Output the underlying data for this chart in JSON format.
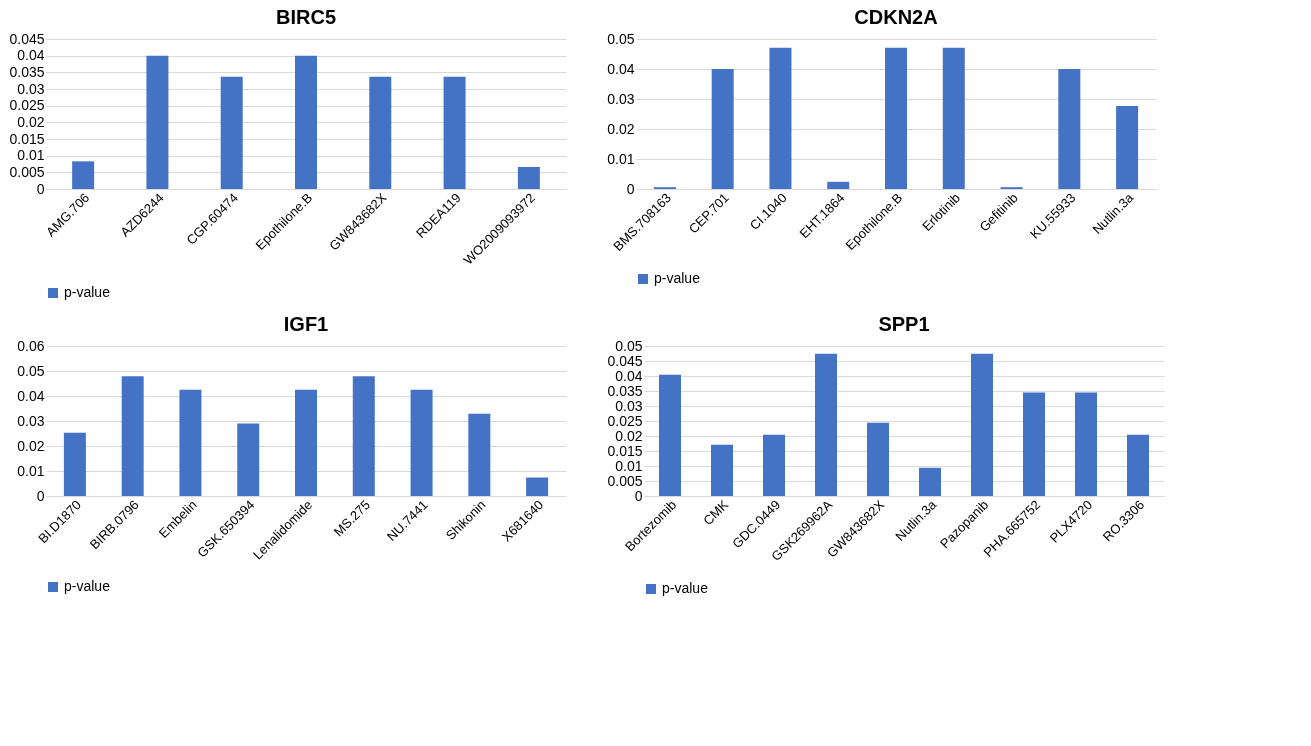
{
  "chart_data": [
    {
      "type": "bar",
      "title": "BIRC5",
      "categories": [
        "AMG.706",
        "AZD6244",
        "CGP.60474",
        "Epothilone.B",
        "GW843682X",
        "RDEA119",
        "WO2009093972"
      ],
      "series": [
        {
          "name": "p-value",
          "color": "#4472c4",
          "values": [
            0.0083,
            0.04,
            0.0337,
            0.04,
            0.0337,
            0.0337,
            0.0066
          ]
        }
      ],
      "ylim": [
        0,
        0.045
      ],
      "yticks": [
        0,
        0.005,
        0.01,
        0.015,
        0.02,
        0.025,
        0.03,
        0.035,
        0.04,
        0.045
      ],
      "grid": "y",
      "legend": "bottom"
    },
    {
      "type": "bar",
      "title": "CDKN2A",
      "categories": [
        "BMS.708163",
        "CEP.701",
        "CI.1040",
        "EHT.1864",
        "Epothilone.B",
        "Erlotinib",
        "Gefitinib",
        "KU.55933",
        "Nutlin.3a"
      ],
      "series": [
        {
          "name": "p-value",
          "color": "#4472c4",
          "values": [
            0.0006,
            0.04,
            0.0471,
            0.0024,
            0.0471,
            0.0471,
            0.0006,
            0.04,
            0.0277
          ]
        }
      ],
      "ylim": [
        0,
        0.05
      ],
      "yticks": [
        0,
        0.01,
        0.02,
        0.03,
        0.04,
        0.05
      ],
      "grid": "y",
      "legend": "bottom"
    },
    {
      "type": "bar",
      "title": "IGF1",
      "categories": [
        "BI.D1870",
        "BIRB.0796",
        "Embelin",
        "GSK.650394",
        "Lenalidomide",
        "MS.275",
        "NU.7441",
        "Shikonin",
        "X681640"
      ],
      "series": [
        {
          "name": "p-value",
          "color": "#4472c4",
          "values": [
            0.0253,
            0.0479,
            0.0425,
            0.029,
            0.0425,
            0.0479,
            0.0425,
            0.0329,
            0.0074
          ]
        }
      ],
      "ylim": [
        0,
        0.06
      ],
      "yticks": [
        0,
        0.01,
        0.02,
        0.03,
        0.04,
        0.05,
        0.06
      ],
      "grid": "y",
      "legend": "bottom"
    },
    {
      "type": "bar",
      "title": "SPP1",
      "categories": [
        "Bortezomib",
        "CMK",
        "GDC.0449",
        "GSK269962A",
        "GW843682X",
        "Nutlin.3a",
        "Pazopanib",
        "PHA.665752",
        "PLX4720",
        "RO.3306"
      ],
      "series": [
        {
          "name": "p-value",
          "color": "#4472c4",
          "values": [
            0.0404,
            0.0171,
            0.0204,
            0.0474,
            0.0244,
            0.0094,
            0.0474,
            0.0345,
            0.0345,
            0.0204
          ]
        }
      ],
      "ylim": [
        0,
        0.05
      ],
      "yticks": [
        0,
        0.005,
        0.01,
        0.015,
        0.02,
        0.025,
        0.03,
        0.035,
        0.04,
        0.045,
        0.05
      ],
      "grid": "y",
      "legend": "bottom"
    }
  ]
}
